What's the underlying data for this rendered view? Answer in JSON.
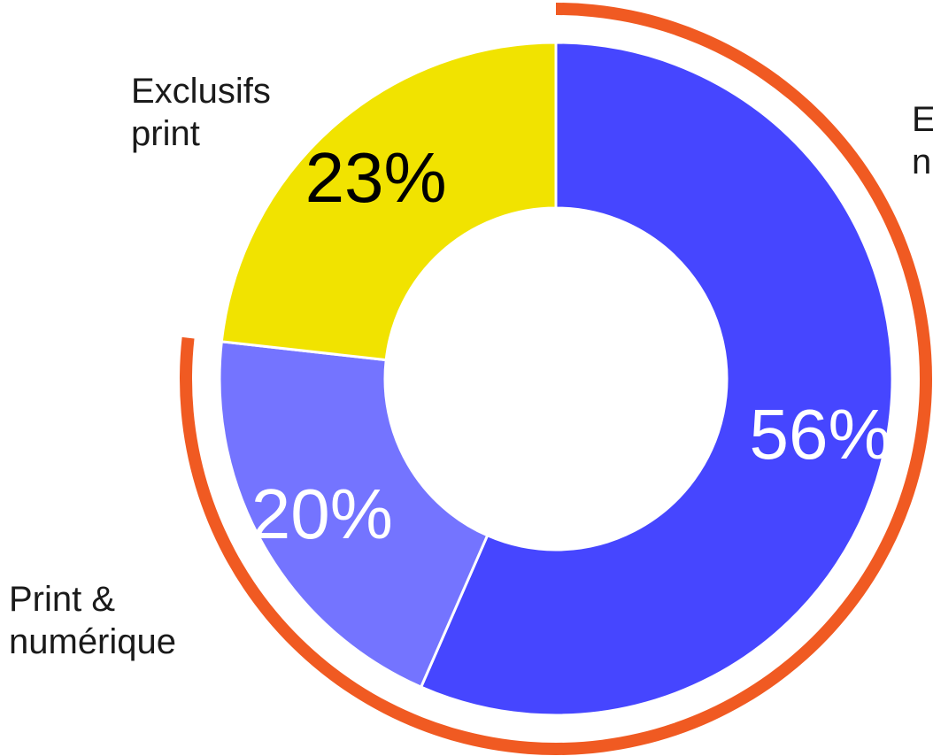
{
  "chart_data": {
    "type": "pie",
    "style": "donut",
    "slices": [
      {
        "label_lines": [
          "E",
          "n"
        ],
        "value": 56,
        "display": "56%",
        "color": "#4646ff",
        "text_color": "#ffffff"
      },
      {
        "label_lines": [
          "Print &",
          "numérique"
        ],
        "value": 20,
        "display": "20%",
        "color": "#7474ff",
        "text_color": "#ffffff"
      },
      {
        "label_lines": [
          "Exclusifs",
          "print"
        ],
        "value": 23,
        "display": "23%",
        "color": "#f1e300",
        "text_color": "#000000"
      }
    ],
    "highlight_arc": {
      "color": "#f05a22",
      "covers_slices": [
        "56%",
        "20%"
      ]
    },
    "start_angle_deg": 0,
    "direction": "clockwise"
  }
}
